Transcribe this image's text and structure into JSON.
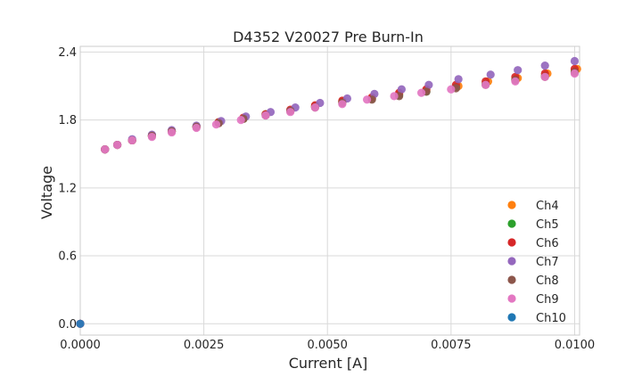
{
  "chart_data": {
    "type": "scatter",
    "title": "D4352 V20027 Pre Burn-In",
    "xlabel": "Current [A]",
    "ylabel": "Voltage",
    "xlim": [
      0,
      0.0101
    ],
    "ylim": [
      -0.1,
      2.45
    ],
    "xticks": [
      0,
      0.0025,
      0.005,
      0.0075,
      0.01
    ],
    "xtick_labels": [
      "0.0000",
      "0.0025",
      "0.0050",
      "0.0075",
      "0.0100"
    ],
    "yticks": [
      0,
      0.6,
      1.2,
      1.8,
      2.4
    ],
    "ytick_labels": [
      "0.0",
      "0.6",
      "1.2",
      "1.8",
      "2.4"
    ],
    "grid": true,
    "legend": "lower-right",
    "series": [
      {
        "name": "Ch4",
        "color": "#ff7f0e",
        "x": [
          0,
          0.0005,
          0.00075,
          0.00105,
          0.00145,
          0.00185,
          0.00235,
          0.0028,
          0.0033,
          0.00375,
          0.00425,
          0.00475,
          0.0053,
          0.0059,
          0.00645,
          0.007,
          0.00765,
          0.00825,
          0.00885,
          0.00945,
          0.01005
        ],
        "y": [
          0,
          1.54,
          1.58,
          1.62,
          1.66,
          1.7,
          1.74,
          1.78,
          1.81,
          1.85,
          1.88,
          1.92,
          1.96,
          1.99,
          2.03,
          2.06,
          2.1,
          2.14,
          2.17,
          2.21,
          2.25
        ]
      },
      {
        "name": "Ch5",
        "color": "#2ca02c",
        "x": [
          0,
          0.0005,
          0.00075,
          0.00105,
          0.00145,
          0.00185,
          0.00235,
          0.0028,
          0.0033,
          0.00375,
          0.00425,
          0.00475,
          0.0053,
          0.0059,
          0.00645,
          0.007,
          0.0076,
          0.0082,
          0.0088,
          0.0094,
          0.01
        ],
        "y": [
          0,
          1.54,
          1.58,
          1.62,
          1.66,
          1.7,
          1.74,
          1.78,
          1.81,
          1.85,
          1.88,
          1.92,
          1.96,
          1.99,
          2.02,
          2.05,
          2.09,
          2.12,
          2.16,
          2.19,
          2.23
        ]
      },
      {
        "name": "Ch6",
        "color": "#d62728",
        "x": [
          0,
          0.0005,
          0.00075,
          0.00105,
          0.00145,
          0.00185,
          0.00235,
          0.0028,
          0.0033,
          0.00375,
          0.00425,
          0.00475,
          0.0053,
          0.0059,
          0.00645,
          0.007,
          0.0076,
          0.0082,
          0.0088,
          0.0094,
          0.01
        ],
        "y": [
          0,
          1.54,
          1.58,
          1.62,
          1.66,
          1.7,
          1.74,
          1.78,
          1.82,
          1.85,
          1.89,
          1.93,
          1.97,
          2.0,
          2.04,
          2.07,
          2.11,
          2.14,
          2.18,
          2.21,
          2.25
        ]
      },
      {
        "name": "Ch7",
        "color": "#9467bd",
        "x": [
          0,
          0.0005,
          0.00075,
          0.00105,
          0.00145,
          0.00185,
          0.00235,
          0.00285,
          0.00335,
          0.00385,
          0.00435,
          0.00485,
          0.0054,
          0.00595,
          0.0065,
          0.00705,
          0.00765,
          0.0083,
          0.00885,
          0.0094,
          0.01
        ],
        "y": [
          0,
          1.54,
          1.58,
          1.63,
          1.67,
          1.71,
          1.75,
          1.79,
          1.83,
          1.87,
          1.91,
          1.95,
          1.99,
          2.03,
          2.07,
          2.11,
          2.16,
          2.2,
          2.24,
          2.28,
          2.32
        ]
      },
      {
        "name": "Ch8",
        "color": "#8c564b",
        "x": [
          0,
          0.0005,
          0.00075,
          0.00105,
          0.00145,
          0.00185,
          0.00235,
          0.0028,
          0.0033,
          0.00375,
          0.00425,
          0.00475,
          0.0053,
          0.0059,
          0.00645,
          0.007,
          0.0076,
          0.0082,
          0.0088,
          0.0094,
          0.01
        ],
        "y": [
          0,
          1.54,
          1.58,
          1.62,
          1.66,
          1.7,
          1.74,
          1.77,
          1.81,
          1.84,
          1.88,
          1.91,
          1.95,
          1.98,
          2.01,
          2.05,
          2.08,
          2.11,
          2.15,
          2.18,
          2.22
        ]
      },
      {
        "name": "Ch9",
        "color": "#e377c2",
        "x": [
          0,
          0.0005,
          0.00075,
          0.00105,
          0.00145,
          0.00185,
          0.00235,
          0.00275,
          0.00325,
          0.00375,
          0.00425,
          0.00475,
          0.0053,
          0.0058,
          0.00635,
          0.0069,
          0.0075,
          0.0082,
          0.0088,
          0.0094,
          0.01
        ],
        "y": [
          0,
          1.54,
          1.58,
          1.62,
          1.65,
          1.69,
          1.73,
          1.76,
          1.8,
          1.84,
          1.87,
          1.91,
          1.94,
          1.98,
          2.01,
          2.04,
          2.07,
          2.11,
          2.14,
          2.18,
          2.21
        ]
      },
      {
        "name": "Ch10",
        "color": "#1f77b4",
        "x": [
          0
        ],
        "y": [
          0
        ]
      }
    ]
  }
}
